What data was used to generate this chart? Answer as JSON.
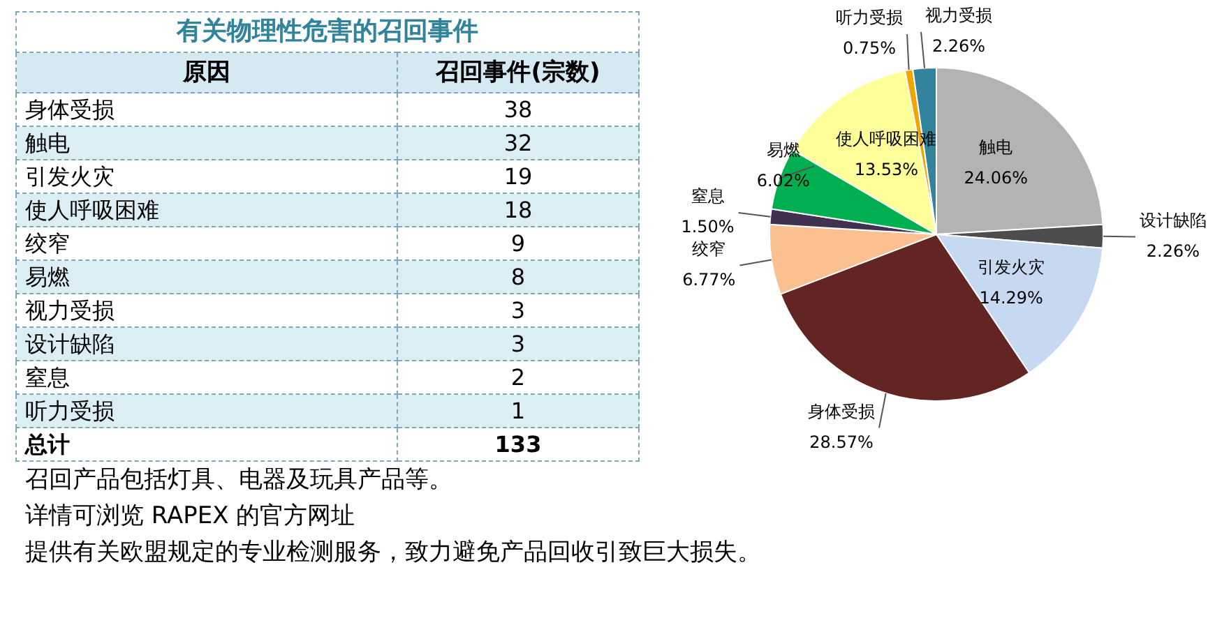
{
  "chart_data": [
    {
      "type": "other",
      "title": "有关物理性危害的召回事件",
      "xlabel": "原因",
      "ylabel": "召回事件(宗数)",
      "categories": [
        "身体受损",
        "触电",
        "引发火灾",
        "使人呼吸困难",
        "绞窄",
        "易燃",
        "视力受损",
        "设计缺陷",
        "窒息",
        "听力受损"
      ],
      "values": [
        38,
        32,
        19,
        18,
        9,
        8,
        3,
        3,
        2,
        1
      ],
      "data_labels": true,
      "totals": [
        "133"
      ],
      "annotations": [
        "总计",
        "召回产品包括灯具、电器及玩具产品等。",
        "详情可浏览 RAPEX 的官方网址",
        "提供有关欧盟规定的专业检测服务，致力避免产品回收引致巨大损失。"
      ]
    },
    {
      "type": "pie",
      "categories": [
        "触电",
        "设计缺陷",
        "引发火灾",
        "身体受损",
        "绞窄",
        "窒息",
        "易燃",
        "使人呼吸困难",
        "听力受损",
        "视力受损"
      ],
      "values": [
        24.06,
        2.26,
        14.29,
        28.57,
        6.77,
        1.5,
        6.02,
        13.53,
        0.75,
        2.26
      ],
      "value_labels": [
        "24.06%",
        "2.26%",
        "14.29%",
        "28.57%",
        "6.77%",
        "1.50%",
        "6.02%",
        "13.53%",
        "0.75%",
        "2.26%"
      ],
      "colors": [
        "#b3b3b3",
        "#4d4d4d",
        "#c6d9f1",
        "#632523",
        "#fac090",
        "#403151",
        "#00b050",
        "#ffff99",
        "#f2a500",
        "#31849b"
      ],
      "legend": false
    }
  ]
}
